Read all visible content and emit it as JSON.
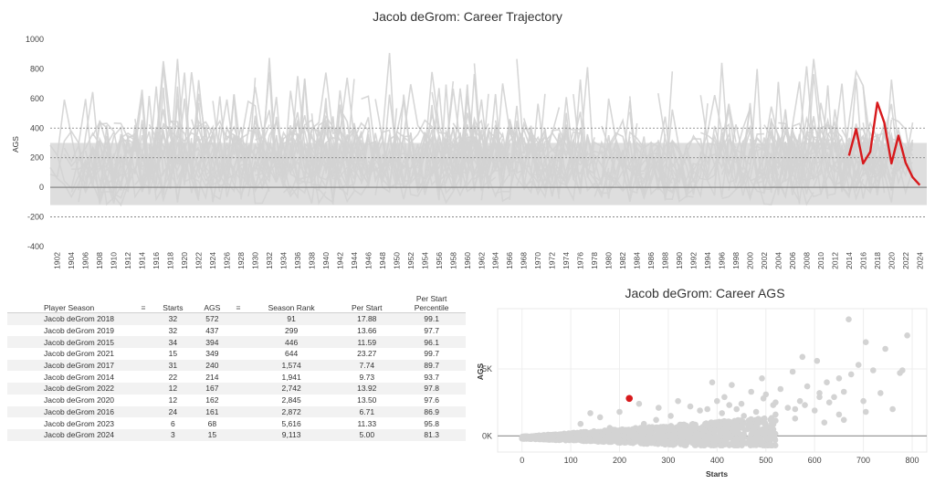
{
  "chart_data": [
    {
      "type": "line",
      "title": "Jacob deGrom: Career Trajectory",
      "ylabel": "AGS",
      "xlabel": "",
      "ylim": [
        -400,
        1000
      ],
      "yticks": [
        -400,
        -200,
        0,
        200,
        400,
        600,
        800,
        1000
      ],
      "xlim": [
        1901,
        2025
      ],
      "xticks": [
        1902,
        1904,
        1906,
        1908,
        1910,
        1912,
        1914,
        1916,
        1918,
        1920,
        1922,
        1924,
        1926,
        1928,
        1930,
        1932,
        1934,
        1936,
        1938,
        1940,
        1942,
        1944,
        1946,
        1948,
        1950,
        1952,
        1954,
        1956,
        1958,
        1960,
        1962,
        1964,
        1966,
        1968,
        1970,
        1972,
        1974,
        1976,
        1978,
        1980,
        1982,
        1984,
        1986,
        1988,
        1990,
        1992,
        1994,
        1996,
        1998,
        2000,
        2002,
        2004,
        2006,
        2008,
        2010,
        2012,
        2014,
        2016,
        2018,
        2020,
        2022,
        2024
      ],
      "reference_lines": [
        -200,
        200,
        400
      ],
      "grid": true,
      "highlight_series": {
        "name": "Jacob deGrom",
        "color": "#d7191c",
        "x": [
          2014,
          2015,
          2016,
          2017,
          2018,
          2019,
          2020,
          2021,
          2022,
          2023,
          2024
        ],
        "y": [
          214,
          394,
          161,
          240,
          572,
          437,
          162,
          349,
          167,
          68,
          15
        ]
      },
      "background_color": "#d3d3d3"
    },
    {
      "type": "scatter",
      "title": "Jacob deGrom: Career AGS",
      "xlabel": "Starts",
      "ylabel": "AGS",
      "xlim": [
        -50,
        830
      ],
      "ylim": [
        -1200,
        9500
      ],
      "xticks": [
        0,
        100,
        200,
        300,
        400,
        500,
        600,
        700,
        800
      ],
      "yticks": [
        0,
        5000
      ],
      "ytick_labels": [
        "0K",
        "5K"
      ],
      "grid": true,
      "highlight_point": {
        "name": "Jacob deGrom",
        "x": 220,
        "y": 2800,
        "color": "#d7191c"
      },
      "points": [
        [
          492,
          4300
        ],
        [
          500,
          3100
        ],
        [
          520,
          2500
        ],
        [
          530,
          3500
        ],
        [
          555,
          4800
        ],
        [
          575,
          5900
        ],
        [
          585,
          3700
        ],
        [
          605,
          5600
        ],
        [
          610,
          3200
        ],
        [
          625,
          4000
        ],
        [
          630,
          2500
        ],
        [
          650,
          4300
        ],
        [
          660,
          3300
        ],
        [
          670,
          8700
        ],
        [
          675,
          4600
        ],
        [
          690,
          5300
        ],
        [
          705,
          7000
        ],
        [
          720,
          4900
        ],
        [
          735,
          3200
        ],
        [
          745,
          6500
        ],
        [
          775,
          4700
        ],
        [
          780,
          4900
        ],
        [
          790,
          7500
        ],
        [
          560,
          2000
        ],
        [
          640,
          2900
        ],
        [
          580,
          2300
        ],
        [
          545,
          2100
        ],
        [
          470,
          3300
        ],
        [
          450,
          2400
        ],
        [
          430,
          3800
        ],
        [
          415,
          2900
        ],
        [
          400,
          2600
        ],
        [
          390,
          4000
        ],
        [
          365,
          1900
        ],
        [
          440,
          2000
        ],
        [
          520,
          1600
        ],
        [
          600,
          1900
        ],
        [
          700,
          2600
        ],
        [
          705,
          1800
        ],
        [
          660,
          1200
        ],
        [
          620,
          1000
        ],
        [
          560,
          1300
        ],
        [
          760,
          2000
        ],
        [
          515,
          2300
        ],
        [
          480,
          1800
        ],
        [
          455,
          1500
        ],
        [
          410,
          1700
        ],
        [
          345,
          2200
        ],
        [
          305,
          1500
        ],
        [
          275,
          1200
        ],
        [
          250,
          900
        ],
        [
          180,
          600
        ],
        [
          160,
          1400
        ],
        [
          140,
          1700
        ],
        [
          120,
          900
        ],
        [
          200,
          1800
        ],
        [
          240,
          2400
        ],
        [
          280,
          2100
        ],
        [
          320,
          2600
        ],
        [
          380,
          2000
        ],
        [
          425,
          2300
        ],
        [
          495,
          2800
        ],
        [
          570,
          2600
        ],
        [
          610,
          2900
        ],
        [
          650,
          1600
        ]
      ]
    },
    {
      "type": "table",
      "columns": [
        "Player Season",
        "",
        "Starts",
        "AGS",
        "",
        "Season Rank",
        "Per Start",
        "Per Start Percentile"
      ],
      "header_lines": {
        "player": "Player Season",
        "starts": "Starts",
        "ags": "AGS",
        "rank": "Season Rank",
        "per_start": "Per Start",
        "pct_line1": "Per Start",
        "pct_line2": "Percentile"
      },
      "rows": [
        {
          "player": "Jacob deGrom 2018",
          "starts": "32",
          "ags": "572",
          "rank": "91",
          "per_start": "17.88",
          "pct": "99.1"
        },
        {
          "player": "Jacob deGrom 2019",
          "starts": "32",
          "ags": "437",
          "rank": "299",
          "per_start": "13.66",
          "pct": "97.7"
        },
        {
          "player": "Jacob deGrom 2015",
          "starts": "34",
          "ags": "394",
          "rank": "446",
          "per_start": "11.59",
          "pct": "96.1"
        },
        {
          "player": "Jacob deGrom 2021",
          "starts": "15",
          "ags": "349",
          "rank": "644",
          "per_start": "23.27",
          "pct": "99.7"
        },
        {
          "player": "Jacob deGrom 2017",
          "starts": "31",
          "ags": "240",
          "rank": "1,574",
          "per_start": "7.74",
          "pct": "89.7"
        },
        {
          "player": "Jacob deGrom 2014",
          "starts": "22",
          "ags": "214",
          "rank": "1,941",
          "per_start": "9.73",
          "pct": "93.7"
        },
        {
          "player": "Jacob deGrom 2022",
          "starts": "12",
          "ags": "167",
          "rank": "2,742",
          "per_start": "13.92",
          "pct": "97.8"
        },
        {
          "player": "Jacob deGrom 2020",
          "starts": "12",
          "ags": "162",
          "rank": "2,845",
          "per_start": "13.50",
          "pct": "97.6"
        },
        {
          "player": "Jacob deGrom 2016",
          "starts": "24",
          "ags": "161",
          "rank": "2,872",
          "per_start": "6.71",
          "pct": "86.9"
        },
        {
          "player": "Jacob deGrom 2023",
          "starts": "6",
          "ags": "68",
          "rank": "5,616",
          "per_start": "11.33",
          "pct": "95.8"
        },
        {
          "player": "Jacob deGrom 2024",
          "starts": "3",
          "ags": "15",
          "rank": "9,113",
          "per_start": "5.00",
          "pct": "81.3"
        }
      ],
      "sort_icon": "sort-descending-icon"
    }
  ]
}
